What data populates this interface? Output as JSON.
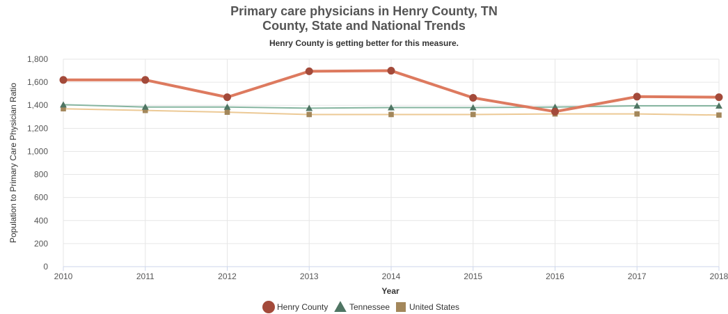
{
  "chart_data": {
    "type": "line",
    "title": "Primary care physicians in Henry County, TN",
    "subtitle": "County, State and National Trends",
    "note": "Henry County is getting better for this measure.",
    "xlabel": "Year",
    "ylabel": "Population to Primary Care Physician Ratio",
    "x": [
      2010,
      2011,
      2012,
      2013,
      2014,
      2015,
      2016,
      2017,
      2018
    ],
    "x_tick_labels": [
      "2010",
      "2011",
      "2012",
      "2013",
      "2014",
      "2015",
      "2016",
      "2017",
      "2018"
    ],
    "ylim": [
      0,
      1800
    ],
    "y_ticks": [
      0,
      200,
      400,
      600,
      800,
      1000,
      1200,
      1400,
      1600,
      1800
    ],
    "y_tick_labels": [
      "0",
      "200",
      "400",
      "600",
      "800",
      "1,000",
      "1,200",
      "1,400",
      "1,600",
      "1,800"
    ],
    "grid": true,
    "legend_position": "bottom-center",
    "series": [
      {
        "name": "Henry County",
        "marker": "circle",
        "color": "#dd7a5f",
        "marker_color": "#a34a3a",
        "values": [
          1620,
          1620,
          1470,
          1695,
          1700,
          1465,
          1345,
          1475,
          1470
        ]
      },
      {
        "name": "Tennessee",
        "marker": "triangle",
        "color": "#86b5a0",
        "marker_color": "#4f7563",
        "values": [
          1405,
          1385,
          1385,
          1375,
          1380,
          1380,
          1385,
          1395,
          1395
        ]
      },
      {
        "name": "United States",
        "marker": "square",
        "color": "#ecc995",
        "marker_color": "#a3875b",
        "values": [
          1370,
          1355,
          1340,
          1320,
          1320,
          1320,
          1325,
          1325,
          1315
        ]
      }
    ]
  }
}
